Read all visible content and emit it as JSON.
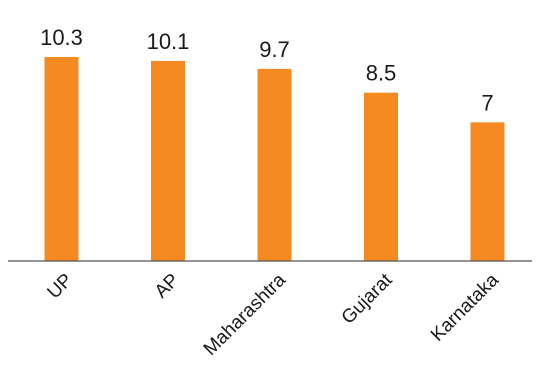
{
  "chart_data": {
    "type": "bar",
    "categories": [
      "UP",
      "AP",
      "Maharashtra",
      "Gujarat",
      "Karnataka"
    ],
    "values": [
      10.3,
      10.1,
      9.7,
      8.5,
      7
    ],
    "value_labels": [
      "10.3",
      "10.1",
      "9.7",
      "8.5",
      "7"
    ],
    "title": "",
    "xlabel": "",
    "ylabel": "",
    "ylim": [
      0,
      10.3
    ],
    "grid": false,
    "legend": "none",
    "bar_color": "#F58A23",
    "axis_color": "#555555",
    "text_color": "#1a1a1a"
  }
}
